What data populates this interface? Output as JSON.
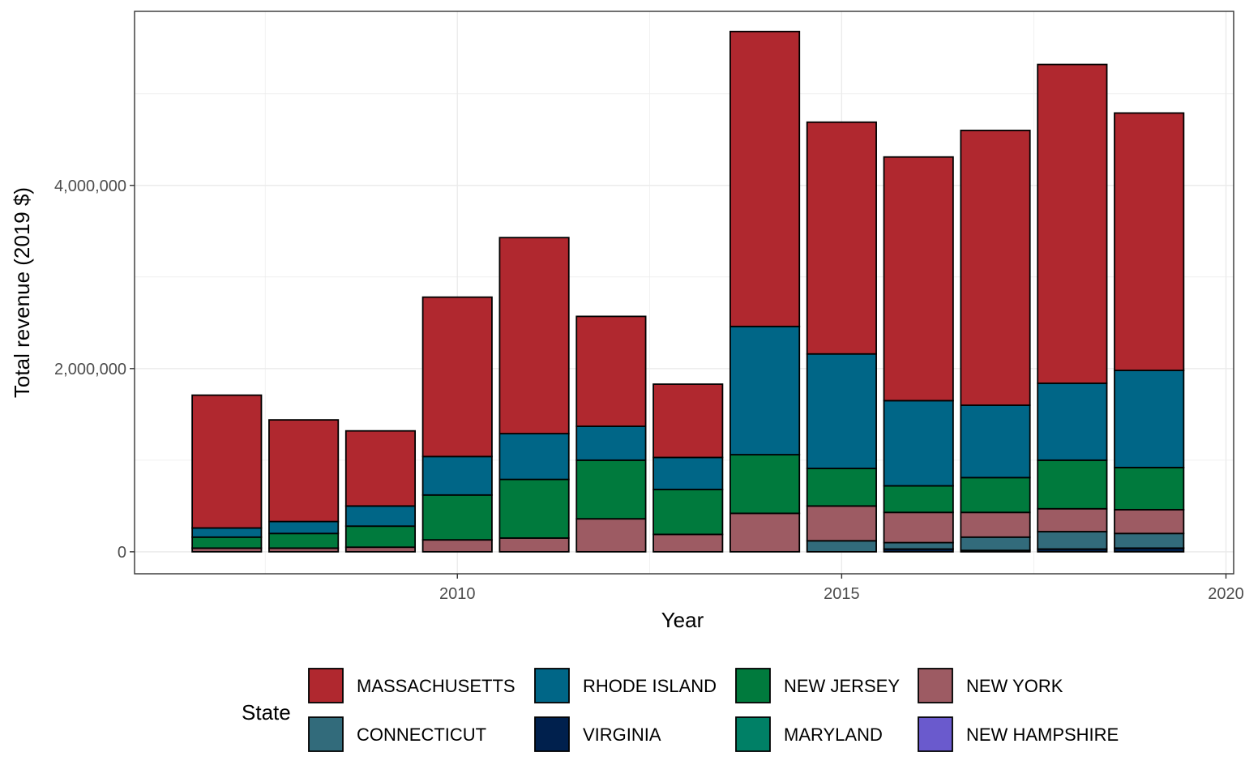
{
  "chart_data": {
    "type": "bar",
    "stacked": true,
    "xlabel": "Year",
    "ylabel": "Total revenue (2019 $)",
    "xlim": [
      2005.8,
      2020.1
    ],
    "ylim": [
      -240000,
      5900000
    ],
    "x_ticks": [
      2010,
      2015,
      2020
    ],
    "x_tick_labels": [
      "2010",
      "2015",
      "2020"
    ],
    "y_ticks": [
      0,
      2000000,
      4000000
    ],
    "y_tick_labels": [
      "0",
      "2,000,000",
      "4,000,000"
    ],
    "grid": true,
    "legend_position": "bottom",
    "legend_title": "State",
    "bar_width": 0.9,
    "x": [
      2007,
      2008,
      2009,
      2010,
      2011,
      2012,
      2013,
      2014,
      2015,
      2016,
      2017,
      2018,
      2019
    ],
    "series": [
      {
        "name": "NEW HAMPSHIRE",
        "color": "#6A5ACD",
        "values": [
          0,
          0,
          0,
          0,
          0,
          0,
          0,
          0,
          0,
          0,
          0,
          0,
          0
        ]
      },
      {
        "name": "MARYLAND",
        "color": "#008066",
        "values": [
          0,
          0,
          0,
          0,
          0,
          0,
          0,
          0,
          0,
          0,
          0,
          0,
          0
        ]
      },
      {
        "name": "VIRGINIA",
        "color": "#00204D",
        "values": [
          0,
          0,
          0,
          0,
          0,
          0,
          0,
          0,
          0,
          30000,
          15000,
          30000,
          40000
        ]
      },
      {
        "name": "CONNECTICUT",
        "color": "#326B7B",
        "values": [
          0,
          0,
          0,
          0,
          0,
          0,
          0,
          0,
          120000,
          70000,
          145000,
          190000,
          160000
        ]
      },
      {
        "name": "NEW YORK",
        "color": "#9D5B63",
        "values": [
          40000,
          40000,
          50000,
          130000,
          150000,
          360000,
          190000,
          420000,
          380000,
          330000,
          270000,
          250000,
          260000
        ]
      },
      {
        "name": "NEW JERSEY",
        "color": "#007A3D",
        "values": [
          120000,
          160000,
          230000,
          490000,
          640000,
          640000,
          490000,
          640000,
          410000,
          290000,
          380000,
          530000,
          460000
        ]
      },
      {
        "name": "RHODE ISLAND",
        "color": "#006687",
        "values": [
          100000,
          130000,
          220000,
          420000,
          500000,
          370000,
          350000,
          1400000,
          1250000,
          930000,
          790000,
          840000,
          1060000
        ]
      },
      {
        "name": "MASSACHUSETTS",
        "color": "#B0282F",
        "values": [
          1450000,
          1110000,
          820000,
          1740000,
          2140000,
          1200000,
          800000,
          3220000,
          2530000,
          2660000,
          3000000,
          3480000,
          2810000
        ]
      }
    ],
    "legend_order": [
      "MASSACHUSETTS",
      "RHODE ISLAND",
      "NEW JERSEY",
      "NEW YORK",
      "CONNECTICUT",
      "VIRGINIA",
      "MARYLAND",
      "NEW HAMPSHIRE"
    ]
  }
}
